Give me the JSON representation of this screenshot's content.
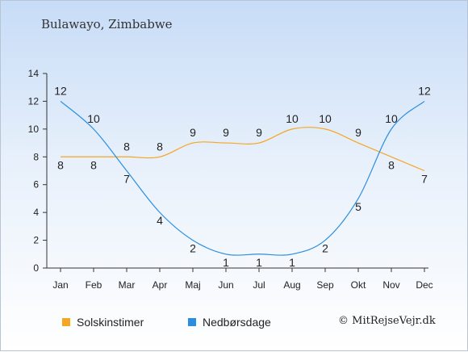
{
  "chart_data": {
    "type": "line",
    "title": "Bulawayo, Zimbabwe",
    "categories": [
      "Jan",
      "Feb",
      "Mar",
      "Apr",
      "Maj",
      "Jun",
      "Jul",
      "Aug",
      "Sep",
      "Okt",
      "Nov",
      "Dec"
    ],
    "yticks": [
      "0",
      "2",
      "4",
      "6",
      "8",
      "10",
      "12",
      "14"
    ],
    "ylim": [
      0,
      14
    ],
    "series": [
      {
        "name": "Solskinstimer",
        "color": "#f5a623",
        "values": [
          8,
          8,
          8,
          8,
          9,
          9,
          9,
          10,
          10,
          9,
          8,
          7
        ]
      },
      {
        "name": "Nedbørsdage",
        "color": "#2b8ee0",
        "values": [
          12,
          10,
          7,
          4,
          2,
          1,
          1,
          1,
          2,
          5,
          10,
          12
        ]
      }
    ],
    "legend_position": "bottom-left",
    "copyright": "© MitRejseVejr.dk"
  }
}
